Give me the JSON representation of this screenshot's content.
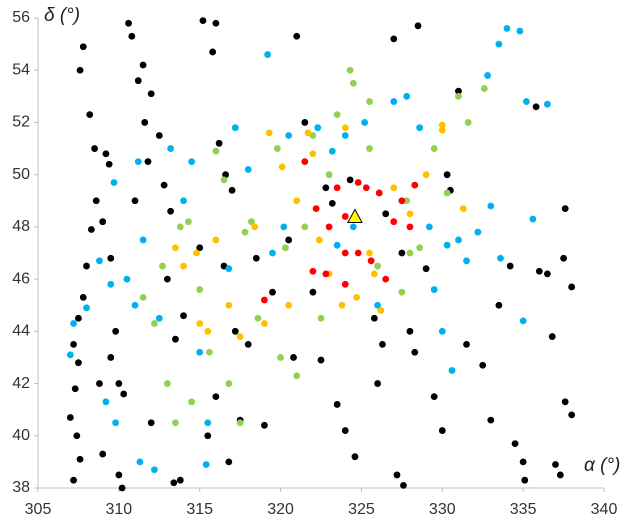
{
  "chart_data": {
    "type": "scatter",
    "xlabel": "α (°)",
    "ylabel": "δ (°)",
    "xlim": [
      305,
      340
    ],
    "xticks": [
      305,
      310,
      315,
      320,
      325,
      330,
      335,
      340
    ],
    "ylim": [
      38,
      56
    ],
    "yticks": [
      38,
      40,
      42,
      44,
      46,
      48,
      50,
      52,
      54,
      56
    ],
    "grid": false,
    "series": [
      {
        "color": "#000000",
        "marker": "circle",
        "x": [
          307.2,
          307.5,
          307.3,
          307.0,
          307.4,
          307.6,
          307.2,
          307.5,
          307.8,
          308.0,
          307.8,
          307.6,
          308.2,
          308.5,
          308.6,
          308.3,
          309.2,
          309.4,
          309.0,
          309.8,
          309.5,
          310.0,
          310.3,
          309.0,
          310.0,
          310.2,
          310.6,
          310.8,
          311.5,
          311.2,
          311.6,
          312.0,
          311.8,
          311.0,
          312.5,
          312.8,
          313.2,
          313.0,
          313.5,
          313.4,
          313.8,
          315.2,
          316.0,
          315.8,
          316.2,
          316.6,
          317.0,
          316.5,
          317.2,
          318.0,
          317.5,
          316.0,
          315.5,
          316.8,
          319.0,
          320.5,
          321.0,
          322.0,
          322.5,
          323.5,
          324.0,
          324.6,
          322.8,
          321.5,
          323.2,
          324.3,
          325.8,
          326.3,
          327.0,
          328.5,
          327.2,
          327.6,
          328.0,
          329.0,
          329.5,
          330.0,
          331.0,
          330.3,
          331.5,
          332.5,
          333.0,
          334.5,
          335.0,
          335.1,
          335.8,
          336.0,
          336.8,
          337.0,
          337.3,
          337.6,
          337.6,
          338.0,
          338.0,
          337.5,
          336.5,
          334.2,
          333.5,
          330.5,
          309.5,
          308.8,
          312.0,
          314.0,
          315.0,
          318.5,
          319.5,
          320.8,
          326.5,
          327.5,
          328.3,
          326.0
        ],
        "y": [
          43.5,
          42.8,
          41.8,
          40.7,
          40.0,
          39.1,
          38.3,
          44.5,
          45.3,
          46.5,
          54.9,
          54.0,
          52.3,
          51.0,
          49.0,
          47.9,
          50.8,
          50.4,
          48.2,
          44.0,
          43.0,
          42.0,
          41.6,
          39.3,
          38.5,
          38.0,
          55.8,
          55.3,
          54.2,
          53.6,
          52.0,
          53.1,
          50.5,
          49.0,
          51.5,
          49.6,
          48.6,
          46.0,
          43.7,
          38.2,
          38.3,
          55.9,
          55.8,
          54.7,
          51.2,
          50.0,
          49.4,
          46.5,
          44.0,
          43.5,
          40.6,
          41.5,
          40.0,
          39.0,
          40.4,
          47.5,
          55.3,
          45.5,
          42.9,
          41.2,
          40.2,
          39.2,
          49.5,
          52.0,
          48.9,
          49.8,
          44.5,
          43.5,
          55.2,
          55.7,
          38.5,
          38.1,
          44.0,
          46.4,
          41.5,
          40.2,
          53.2,
          50.0,
          43.5,
          42.7,
          40.6,
          39.7,
          39.0,
          38.3,
          52.6,
          46.3,
          43.8,
          38.9,
          38.5,
          41.3,
          48.7,
          45.7,
          40.8,
          46.8,
          46.2,
          46.5,
          45.0,
          49.4,
          46.8,
          42.0,
          40.5,
          44.6,
          47.2,
          46.8,
          45.5,
          43.0,
          48.5,
          47.0,
          43.2,
          42.0
        ]
      },
      {
        "color": "#00b0f0",
        "marker": "circle",
        "x": [
          307.0,
          307.2,
          308.0,
          308.8,
          309.5,
          309.7,
          309.2,
          309.8,
          310.5,
          311.0,
          311.2,
          311.5,
          311.3,
          312.2,
          312.5,
          313.2,
          314.0,
          314.5,
          315.0,
          315.5,
          315.4,
          316.8,
          317.2,
          318.0,
          319.2,
          319.5,
          320.2,
          320.5,
          322.3,
          323.2,
          323.5,
          324.0,
          324.5,
          325.2,
          326.0,
          327.0,
          327.8,
          328.6,
          329.2,
          329.5,
          330.0,
          330.6,
          331.0,
          331.5,
          332.2,
          332.8,
          333.0,
          333.5,
          334.0,
          334.8,
          335.2,
          335.6,
          336.5,
          335.0,
          333.6,
          330.3
        ],
        "y": [
          43.1,
          44.3,
          44.9,
          46.7,
          45.8,
          49.7,
          41.3,
          40.5,
          46.0,
          45.0,
          50.5,
          47.5,
          39.0,
          38.7,
          44.5,
          51.0,
          49.0,
          50.5,
          43.2,
          40.5,
          38.9,
          46.4,
          51.8,
          50.2,
          54.6,
          47.0,
          48.0,
          51.5,
          51.8,
          50.9,
          47.3,
          51.5,
          48.0,
          52.0,
          45.0,
          52.8,
          53.0,
          51.8,
          48.0,
          45.6,
          44.0,
          42.5,
          47.5,
          46.7,
          47.8,
          53.8,
          48.8,
          55.0,
          55.6,
          55.5,
          52.8,
          48.3,
          52.7,
          44.4,
          46.8,
          47.3
        ]
      },
      {
        "color": "#92d050",
        "marker": "circle",
        "x": [
          311.5,
          312.2,
          312.7,
          313.0,
          313.5,
          313.8,
          314.3,
          314.5,
          315.0,
          315.6,
          316.0,
          316.5,
          316.8,
          317.5,
          317.8,
          318.2,
          318.6,
          319.8,
          320.0,
          320.3,
          321.0,
          321.5,
          322.0,
          322.5,
          323.0,
          323.5,
          324.3,
          324.5,
          325.5,
          326.0,
          327.5,
          327.8,
          328.0,
          328.6,
          329.5,
          330.3,
          331.0,
          331.6,
          332.6,
          325.5
        ],
        "y": [
          45.3,
          44.3,
          46.5,
          42.0,
          40.5,
          48.0,
          48.2,
          41.3,
          45.6,
          43.2,
          50.9,
          49.8,
          42.0,
          40.5,
          47.8,
          48.2,
          44.5,
          51.0,
          43.0,
          47.2,
          42.3,
          48.0,
          51.5,
          44.5,
          50.0,
          52.3,
          54.0,
          53.5,
          52.8,
          46.5,
          45.5,
          49.0,
          47.0,
          47.2,
          51.0,
          49.3,
          53.0,
          52.0,
          53.3,
          51.0
        ]
      },
      {
        "color": "#ffc000",
        "marker": "circle",
        "x": [
          313.5,
          314.0,
          314.8,
          315.0,
          315.5,
          316.0,
          316.8,
          317.5,
          318.4,
          319.0,
          319.3,
          320.1,
          320.5,
          321.0,
          322.0,
          322.4,
          323.0,
          323.8,
          324.0,
          324.7,
          325.5,
          326.2,
          327.0,
          328.0,
          329.0,
          330.0,
          330.0,
          331.3,
          325.8,
          321.7
        ],
        "y": [
          47.2,
          46.5,
          47.0,
          44.3,
          44.0,
          47.5,
          45.0,
          43.8,
          48.0,
          44.3,
          51.6,
          50.3,
          45.0,
          49.0,
          50.8,
          47.5,
          46.2,
          45.0,
          51.8,
          45.3,
          47.0,
          44.8,
          49.5,
          48.5,
          50.0,
          51.7,
          51.9,
          48.7,
          46.2,
          51.6
        ]
      },
      {
        "color": "#ff0000",
        "marker": "circle",
        "x": [
          321.5,
          322.2,
          322.0,
          322.8,
          323.0,
          323.5,
          324.0,
          324.0,
          324.8,
          324.8,
          325.3,
          325.6,
          326.1,
          326.5,
          327.0,
          327.5,
          328.0,
          328.3,
          324.0,
          319.0
        ],
        "y": [
          50.5,
          48.7,
          46.3,
          46.2,
          48.0,
          49.5,
          47.0,
          45.8,
          47.0,
          49.7,
          49.5,
          46.7,
          49.3,
          46.0,
          48.2,
          49.0,
          48.0,
          49.6,
          48.4,
          45.2
        ]
      },
      {
        "color": "#ffff00",
        "edgecolor": "#000000",
        "marker": "triangle",
        "x": [
          324.6
        ],
        "y": [
          48.4
        ]
      }
    ]
  }
}
